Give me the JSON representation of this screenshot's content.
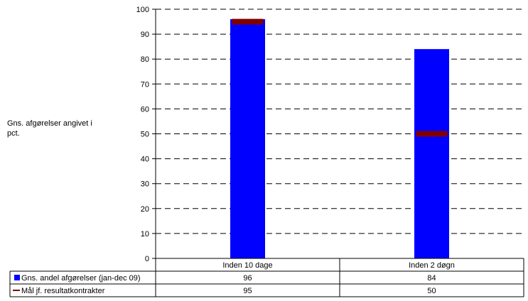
{
  "chart_data": {
    "type": "bar",
    "title": "",
    "xlabel": "",
    "ylabel": "Gns. afgørelser angivet i pct.",
    "ylabel_lines": [
      "Gns. afgørelser angivet i",
      "pct."
    ],
    "ylim": [
      0,
      100
    ],
    "yticks": [
      0,
      10,
      20,
      30,
      40,
      50,
      60,
      70,
      80,
      90,
      100
    ],
    "grid": true,
    "grid_style": "dashed",
    "legend_position": "data-table-below",
    "categories": [
      "Inden 10 dage",
      "Inden 2 døgn"
    ],
    "series": [
      {
        "name": "Gns. andel afgørelser (jan-dec 09)",
        "kind": "bar",
        "color": "#0000FF",
        "values": [
          96,
          84
        ],
        "value_labels": [
          "96",
          "84"
        ]
      },
      {
        "name": "Mål jf. resultatkontrakter",
        "kind": "marker",
        "color": "#800000",
        "values": [
          95,
          50
        ],
        "value_labels": [
          "95",
          "50"
        ]
      }
    ]
  }
}
